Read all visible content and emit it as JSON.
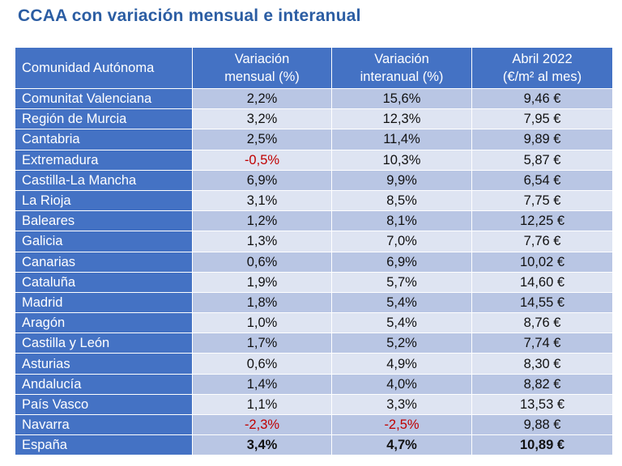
{
  "title": "CCAA con variación mensual e interanual",
  "header": {
    "col1": "Comunidad Autónoma",
    "col2_line1": "Variación",
    "col2_line2": "mensual (%)",
    "col3_line1": "Variación",
    "col3_line2": "interanual (%)",
    "col4_line1": "Abril 2022",
    "col4_line2": "(€/m² al mes)"
  },
  "rows": [
    {
      "name": "Comunitat Valenciana",
      "mensual": "2,2%",
      "interanual": "15,6%",
      "precio": "9,46 €"
    },
    {
      "name": "Región de Murcia",
      "mensual": "3,2%",
      "interanual": "12,3%",
      "precio": "7,95 €"
    },
    {
      "name": "Cantabria",
      "mensual": "2,5%",
      "interanual": "11,4%",
      "precio": "9,89 €"
    },
    {
      "name": "Extremadura",
      "mensual": "-0,5%",
      "interanual": "10,3%",
      "precio": "5,87 €"
    },
    {
      "name": "Castilla-La Mancha",
      "mensual": "6,9%",
      "interanual": "9,9%",
      "precio": "6,54 €"
    },
    {
      "name": "La Rioja",
      "mensual": "3,1%",
      "interanual": "8,5%",
      "precio": "7,75 €"
    },
    {
      "name": "Baleares",
      "mensual": "1,2%",
      "interanual": "8,1%",
      "precio": "12,25 €"
    },
    {
      "name": "Galicia",
      "mensual": "1,3%",
      "interanual": "7,0%",
      "precio": "7,76 €"
    },
    {
      "name": "Canarias",
      "mensual": "0,6%",
      "interanual": "6,9%",
      "precio": "10,02 €"
    },
    {
      "name": "Cataluña",
      "mensual": "1,9%",
      "interanual": "5,7%",
      "precio": "14,60 €"
    },
    {
      "name": "Madrid",
      "mensual": "1,8%",
      "interanual": "5,4%",
      "precio": "14,55 €"
    },
    {
      "name": "Aragón",
      "mensual": "1,0%",
      "interanual": "5,4%",
      "precio": "8,76 €"
    },
    {
      "name": "Castilla y León",
      "mensual": "1,7%",
      "interanual": "5,2%",
      "precio": "7,74 €"
    },
    {
      "name": "Asturias",
      "mensual": "0,6%",
      "interanual": "4,9%",
      "precio": "8,30 €"
    },
    {
      "name": "Andalucía",
      "mensual": "1,4%",
      "interanual": "4,0%",
      "precio": "8,82 €"
    },
    {
      "name": "País Vasco",
      "mensual": "1,1%",
      "interanual": "3,3%",
      "precio": "13,53 €"
    },
    {
      "name": "Navarra",
      "mensual": "-2,3%",
      "interanual": "-2,5%",
      "precio": "9,88 €"
    }
  ],
  "total": {
    "name": "España",
    "mensual": "3,4%",
    "interanual": "4,7%",
    "precio": "10,89 €"
  },
  "colors": {
    "title": "#2b5da3",
    "header_bg": "#4472c4",
    "row_dark": "#b9c6e4",
    "row_light": "#dee4f2",
    "negative": "#c00000"
  }
}
